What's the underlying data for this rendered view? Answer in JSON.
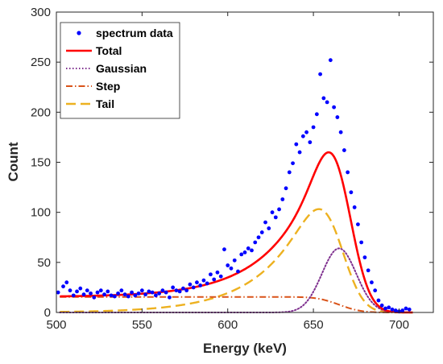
{
  "chart_data": {
    "type": "line",
    "title": "",
    "xlabel": "Energy (keV)",
    "ylabel": "Count",
    "xlim": [
      500,
      720
    ],
    "ylim": [
      0,
      300
    ],
    "xticks": [
      500,
      550,
      600,
      650,
      700
    ],
    "yticks": [
      0,
      50,
      100,
      150,
      200,
      250,
      300
    ],
    "grid": false,
    "legend_position": "top-left",
    "series": [
      {
        "name": "spectrum data",
        "style": "scatter",
        "color": "#0000ff",
        "points": [
          [
            501,
            20
          ],
          [
            504,
            26
          ],
          [
            506,
            30
          ],
          [
            508,
            22
          ],
          [
            510,
            17
          ],
          [
            512,
            21
          ],
          [
            514,
            24
          ],
          [
            516,
            18
          ],
          [
            518,
            22
          ],
          [
            520,
            19
          ],
          [
            522,
            15
          ],
          [
            524,
            20
          ],
          [
            526,
            22
          ],
          [
            528,
            18
          ],
          [
            530,
            21
          ],
          [
            532,
            17
          ],
          [
            534,
            16
          ],
          [
            536,
            19
          ],
          [
            538,
            22
          ],
          [
            540,
            18
          ],
          [
            542,
            16
          ],
          [
            544,
            20
          ],
          [
            546,
            17
          ],
          [
            548,
            19
          ],
          [
            550,
            22
          ],
          [
            552,
            18
          ],
          [
            554,
            21
          ],
          [
            556,
            20
          ],
          [
            558,
            17
          ],
          [
            560,
            19
          ],
          [
            562,
            22
          ],
          [
            564,
            20
          ],
          [
            566,
            15
          ],
          [
            568,
            25
          ],
          [
            570,
            22
          ],
          [
            572,
            21
          ],
          [
            574,
            24
          ],
          [
            576,
            22
          ],
          [
            578,
            28
          ],
          [
            580,
            25
          ],
          [
            582,
            30
          ],
          [
            584,
            27
          ],
          [
            586,
            32
          ],
          [
            588,
            29
          ],
          [
            590,
            38
          ],
          [
            592,
            33
          ],
          [
            594,
            40
          ],
          [
            596,
            36
          ],
          [
            598,
            63
          ],
          [
            600,
            47
          ],
          [
            602,
            44
          ],
          [
            604,
            52
          ],
          [
            606,
            41
          ],
          [
            608,
            58
          ],
          [
            610,
            60
          ],
          [
            612,
            64
          ],
          [
            614,
            62
          ],
          [
            616,
            70
          ],
          [
            618,
            75
          ],
          [
            620,
            80
          ],
          [
            622,
            90
          ],
          [
            624,
            84
          ],
          [
            626,
            100
          ],
          [
            628,
            95
          ],
          [
            630,
            103
          ],
          [
            632,
            113
          ],
          [
            634,
            124
          ],
          [
            636,
            140
          ],
          [
            638,
            149
          ],
          [
            640,
            168
          ],
          [
            642,
            160
          ],
          [
            644,
            176
          ],
          [
            646,
            180
          ],
          [
            648,
            170
          ],
          [
            650,
            185
          ],
          [
            652,
            198
          ],
          [
            654,
            238
          ],
          [
            656,
            214
          ],
          [
            658,
            210
          ],
          [
            660,
            252
          ],
          [
            662,
            205
          ],
          [
            664,
            195
          ],
          [
            666,
            180
          ],
          [
            668,
            162
          ],
          [
            670,
            140
          ],
          [
            672,
            120
          ],
          [
            674,
            105
          ],
          [
            676,
            88
          ],
          [
            678,
            70
          ],
          [
            680,
            55
          ],
          [
            682,
            42
          ],
          [
            684,
            30
          ],
          [
            686,
            22
          ],
          [
            688,
            12
          ],
          [
            690,
            7
          ],
          [
            692,
            4
          ],
          [
            694,
            5
          ],
          [
            696,
            3
          ],
          [
            698,
            2
          ],
          [
            700,
            1
          ],
          [
            702,
            2
          ],
          [
            704,
            4
          ],
          [
            706,
            3
          ]
        ]
      },
      {
        "name": "Total",
        "style": "solid",
        "color": "#ff0000",
        "model": "total",
        "params": {
          "step_height": 15.5,
          "center": 665,
          "sigma": 10,
          "gauss_amp": 64,
          "tail_amp": 198,
          "tail_tau": 28
        }
      },
      {
        "name": "Gaussian",
        "style": "dotted",
        "color": "#7e2f8e",
        "model": "gaussian",
        "params": {
          "center": 665,
          "sigma": 10,
          "amplitude": 64
        }
      },
      {
        "name": "Step",
        "style": "dashdot",
        "color": "#d95319",
        "model": "step",
        "params": {
          "height": 15.5,
          "center": 665,
          "sigma": 10
        }
      },
      {
        "name": "Tail",
        "style": "dashed",
        "color": "#edb120",
        "model": "tail",
        "params": {
          "amplitude": 198,
          "center": 665,
          "sigma": 10,
          "tau": 28
        }
      }
    ]
  }
}
